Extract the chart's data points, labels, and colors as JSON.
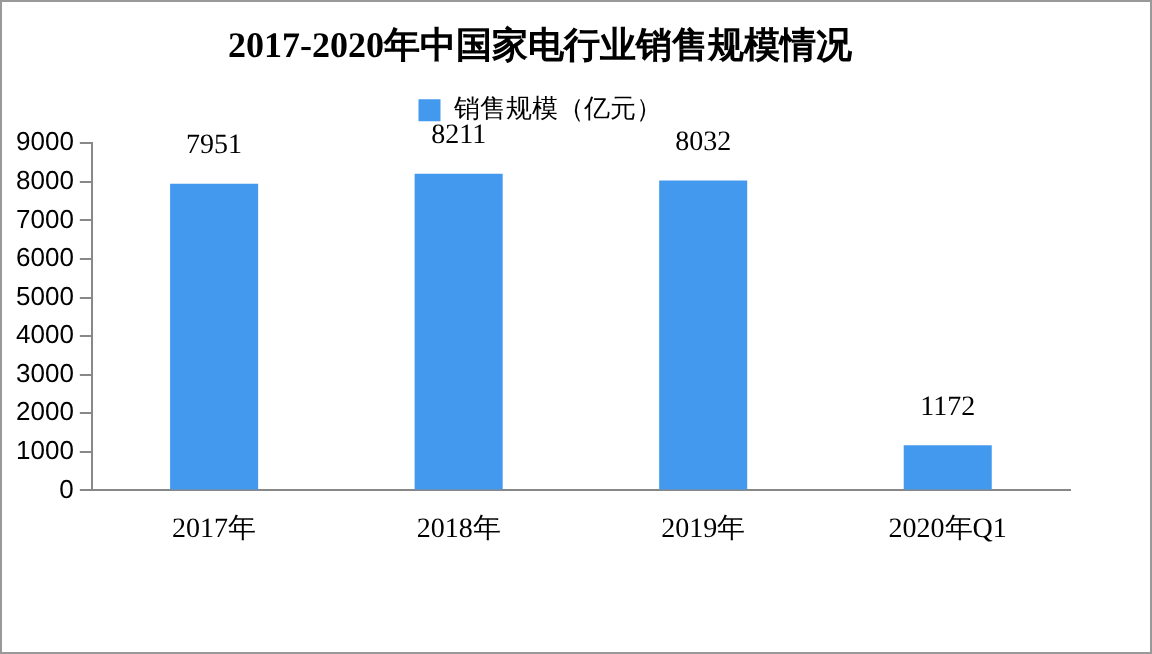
{
  "chart_data": {
    "type": "bar",
    "title": "2017-2020年中国家电行业销售规模情况",
    "categories": [
      "2017年",
      "2018年",
      "2019年",
      "2020年Q1"
    ],
    "series": [
      {
        "name": "销售规模（亿元）",
        "color": "#4399ee",
        "values": [
          7951,
          8211,
          8032,
          1172
        ]
      }
    ],
    "ylim": [
      0,
      9000
    ],
    "yticks": [
      0,
      1000,
      2000,
      3000,
      4000,
      5000,
      6000,
      7000,
      8000,
      9000
    ],
    "grid": false,
    "legend": "top",
    "data_labels": true
  }
}
